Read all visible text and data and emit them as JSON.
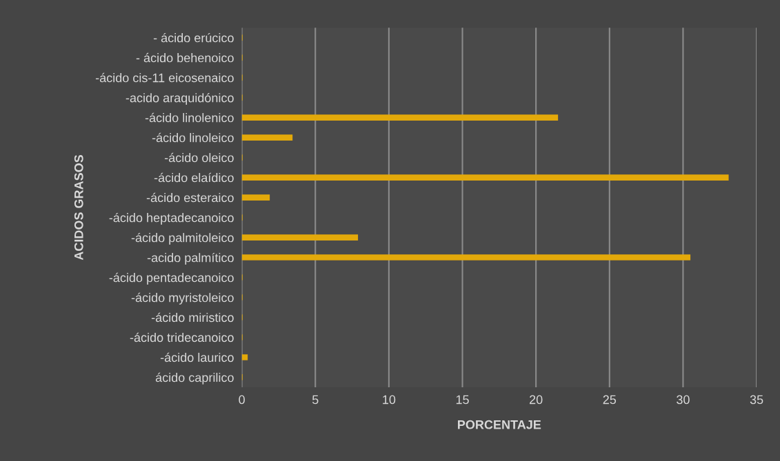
{
  "chart_data": {
    "type": "bar",
    "orientation": "horizontal",
    "xlabel": "PORCENTAJE",
    "ylabel": "ACIDOS GRASOS",
    "categories": [
      "- ácido erúcico",
      "- ácido behenoico",
      "-ácido cis-11 eicosenaico",
      "-acido araquidónico",
      "-ácido linolenico",
      "-ácido linoleico",
      "-ácido oleico",
      "-ácido elaídico",
      "-ácido esteraico",
      "-ácido heptadecanoico",
      "-ácido palmitoleico",
      "-acido palmítico",
      "-ácido pentadecanoico",
      "-ácido myristoleico",
      "-ácido miristico",
      "-ácido tridecanoico",
      "-ácido laurico",
      "ácido caprilico"
    ],
    "values": [
      0.05,
      0.05,
      0.05,
      0.05,
      21.5,
      3.45,
      0.05,
      33.1,
      1.9,
      0.05,
      7.9,
      30.5,
      0.05,
      0.05,
      0.05,
      0.05,
      0.4,
      0.05
    ],
    "color": "#e3a90a",
    "xlim": [
      0,
      35
    ],
    "xticks": [
      0,
      5,
      10,
      15,
      20,
      25,
      30,
      35
    ],
    "grid": "x",
    "legend": false
  }
}
